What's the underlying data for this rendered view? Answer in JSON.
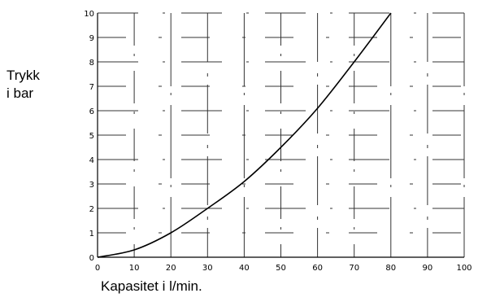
{
  "chart_data": {
    "type": "line",
    "xlabel": "Kapasitet i l/min.",
    "ylabel_line1": "Trykk",
    "ylabel_line2": "i bar",
    "xlim": [
      0,
      100
    ],
    "ylim": [
      0,
      10
    ],
    "x_ticks": [
      "0",
      "10",
      "20",
      "30",
      "40",
      "50",
      "60",
      "70",
      "80",
      "90",
      "100"
    ],
    "y_ticks": [
      "0",
      "1",
      "2",
      "3",
      "4",
      "5",
      "6",
      "7",
      "8",
      "9",
      "10"
    ],
    "grid": true,
    "series": [
      {
        "x": [
          0,
          10,
          20,
          30,
          40,
          50,
          60,
          70,
          80
        ],
        "y": [
          0,
          0.3,
          1.0,
          2.0,
          3.1,
          4.5,
          6.1,
          8.0,
          10.0
        ]
      }
    ]
  }
}
